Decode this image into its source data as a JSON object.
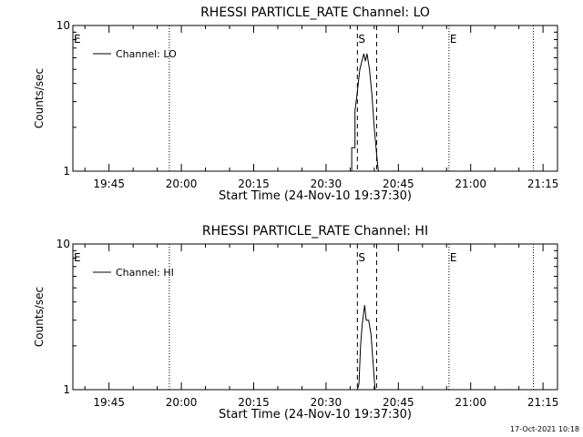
{
  "chart_data": [
    {
      "type": "line",
      "title": "RHESSI PARTICLE_RATE Channel: LO",
      "xlabel": "Start Time (24-Nov-10 19:37:30)",
      "ylabel": "Counts/sec",
      "yscale": "log",
      "ylim": [
        1,
        10
      ],
      "y_ticks": [
        {
          "v": 1,
          "label": "1"
        },
        {
          "v": 10,
          "label": "10"
        }
      ],
      "xlim": [
        "19:37:30",
        "21:18:00"
      ],
      "x_ticks": [
        "19:45",
        "20:00",
        "20:15",
        "20:30",
        "20:45",
        "21:00",
        "21:15"
      ],
      "legend": {
        "position": "top-left",
        "label": "Channel: LO"
      },
      "markers": [
        {
          "time": "19:37:30",
          "label": "E",
          "style": "dotted"
        },
        {
          "time": "19:57:30",
          "label": "",
          "style": "dotted"
        },
        {
          "time": "20:36:30",
          "label": "S",
          "style": "dashed"
        },
        {
          "time": "20:40:30",
          "label": "",
          "style": "dashed"
        },
        {
          "time": "20:55:30",
          "label": "E",
          "style": "dotted"
        },
        {
          "time": "21:13:00",
          "label": "",
          "style": "dotted"
        }
      ],
      "series": [
        {
          "points": [
            [
              "20:35:00",
              1.0
            ],
            [
              "20:35:20",
              1.0
            ],
            [
              "20:35:20",
              1.45
            ],
            [
              "20:36:00",
              1.45
            ],
            [
              "20:36:00",
              2.6
            ],
            [
              "20:36:30",
              3.5
            ],
            [
              "20:37:00",
              5.0
            ],
            [
              "20:37:30",
              5.8
            ],
            [
              "20:37:50",
              6.4
            ],
            [
              "20:38:10",
              5.7
            ],
            [
              "20:38:30",
              6.4
            ],
            [
              "20:39:00",
              5.0
            ],
            [
              "20:39:30",
              3.4
            ],
            [
              "20:40:00",
              2.0
            ],
            [
              "20:40:30",
              1.3
            ],
            [
              "20:40:50",
              1.0
            ]
          ]
        }
      ]
    },
    {
      "type": "line",
      "title": "RHESSI PARTICLE_RATE Channel: HI",
      "xlabel": "Start Time (24-Nov-10 19:37:30)",
      "ylabel": "Counts/sec",
      "yscale": "log",
      "ylim": [
        1,
        10
      ],
      "y_ticks": [
        {
          "v": 1,
          "label": "1"
        },
        {
          "v": 10,
          "label": "10"
        }
      ],
      "xlim": [
        "19:37:30",
        "21:18:00"
      ],
      "x_ticks": [
        "19:45",
        "20:00",
        "20:15",
        "20:30",
        "20:45",
        "21:00",
        "21:15"
      ],
      "legend": {
        "position": "top-left",
        "label": "Channel: HI"
      },
      "markers": [
        {
          "time": "19:37:30",
          "label": "E",
          "style": "dotted"
        },
        {
          "time": "19:57:30",
          "label": "",
          "style": "dotted"
        },
        {
          "time": "20:36:30",
          "label": "S",
          "style": "dashed"
        },
        {
          "time": "20:40:30",
          "label": "",
          "style": "dashed"
        },
        {
          "time": "20:55:30",
          "label": "E",
          "style": "dotted"
        },
        {
          "time": "21:13:00",
          "label": "",
          "style": "dotted"
        }
      ],
      "series": [
        {
          "points": [
            [
              "20:36:30",
              1.0
            ],
            [
              "20:36:50",
              1.1
            ],
            [
              "20:37:10",
              2.0
            ],
            [
              "20:37:30",
              2.8
            ],
            [
              "20:38:00",
              3.8
            ],
            [
              "20:38:20",
              3.0
            ],
            [
              "20:38:50",
              3.0
            ],
            [
              "20:39:20",
              2.4
            ],
            [
              "20:39:50",
              1.4
            ],
            [
              "20:40:10",
              1.0
            ]
          ]
        }
      ]
    }
  ],
  "footer": {
    "timestamp": "17-Oct-2021 10:18"
  },
  "colors": {
    "background": "#ffffff",
    "ink": "#000000"
  }
}
